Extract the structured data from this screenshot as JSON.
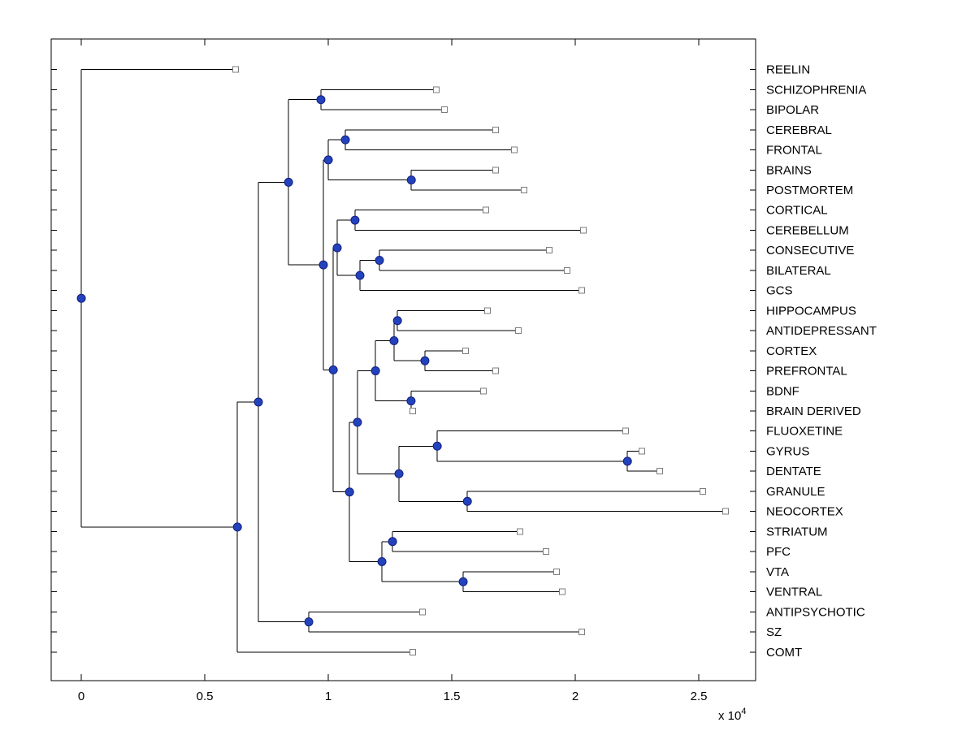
{
  "chart_data": {
    "type": "dendrogram",
    "title": "",
    "orientation": "root-left-leaves-right",
    "x_axis": {
      "tick_values": [
        0,
        0.5,
        1,
        1.5,
        2,
        2.5
      ],
      "tick_labels": [
        "0",
        "0.5",
        "1",
        "1.5",
        "2",
        "2.5"
      ],
      "range": [
        -0.122,
        2.73
      ],
      "multiplier_label": "x 10",
      "multiplier_exponent": "4",
      "units_multiplier": 10000
    },
    "y_axis": {
      "tick_count": 30,
      "ticks_per_leaf": true
    },
    "styles": {
      "background": "#ffffff",
      "branch_color": "#000000",
      "axis_color": "#000000",
      "label_color": "#000000",
      "node_marker": {
        "shape": "circle",
        "fill": "#2343bd",
        "edge": "#141f7d"
      },
      "leaf_marker": {
        "shape": "square",
        "fill": "#ffffff",
        "edge": "#7d7d7d"
      }
    },
    "tree": {
      "x": 0.0,
      "children": [
        {
          "label": "REELIN",
          "x": 0.625
        },
        {
          "x": 0.632,
          "children": [
            {
              "x": 0.717,
              "children": [
                {
                  "x": 0.839,
                  "children": [
                    {
                      "x": 0.97,
                      "children": [
                        {
                          "label": "SCHIZOPHRENIA",
                          "x": 1.438
                        },
                        {
                          "label": "BIPOLAR",
                          "x": 1.47
                        }
                      ]
                    },
                    {
                      "x": 0.98,
                      "children": [
                        {
                          "x": 1.0,
                          "children": [
                            {
                              "x": 1.069,
                              "children": [
                                {
                                  "label": "CEREBRAL",
                                  "x": 1.678
                                },
                                {
                                  "label": "FRONTAL",
                                  "x": 1.753
                                }
                              ]
                            },
                            {
                              "x": 1.336,
                              "children": [
                                {
                                  "label": "BRAINS",
                                  "x": 1.678
                                },
                                {
                                  "label": "POSTMORTEM",
                                  "x": 1.793
                                }
                              ]
                            }
                          ]
                        },
                        {
                          "x": 1.02,
                          "children": [
                            {
                              "x": 1.036,
                              "children": [
                                {
                                  "x": 1.108,
                                  "children": [
                                    {
                                      "label": "CORTICAL",
                                      "x": 1.638
                                    },
                                    {
                                      "label": "CEREBELLUM",
                                      "x": 2.033
                                    }
                                  ]
                                },
                                {
                                  "x": 1.128,
                                  "children": [
                                    {
                                      "x": 1.207,
                                      "children": [
                                        {
                                          "label": "CONSECUTIVE",
                                          "x": 1.895
                                        },
                                        {
                                          "label": "BILATERAL",
                                          "x": 1.967
                                        }
                                      ]
                                    },
                                    {
                                      "label": "GCS",
                                      "x": 2.026
                                    }
                                  ]
                                }
                              ]
                            },
                            {
                              "x": 1.086,
                              "children": [
                                {
                                  "x": 1.118,
                                  "children": [
                                    {
                                      "x": 1.191,
                                      "children": [
                                        {
                                          "x": 1.266,
                                          "children": [
                                            {
                                              "x": 1.28,
                                              "children": [
                                                {
                                                  "label": "HIPPOCAMPUS",
                                                  "x": 1.645
                                                },
                                                {
                                                  "label": "ANTIDEPRESSANT",
                                                  "x": 1.77
                                                }
                                              ]
                                            },
                                            {
                                              "x": 1.391,
                                              "children": [
                                                {
                                                  "label": "CORTEX",
                                                  "x": 1.556
                                                },
                                                {
                                                  "label": "PREFRONTAL",
                                                  "x": 1.678
                                                }
                                              ]
                                            }
                                          ]
                                        },
                                        {
                                          "x": 1.335,
                                          "children": [
                                            {
                                              "label": "BDNF",
                                              "x": 1.628
                                            },
                                            {
                                              "label": "BRAIN DERIVED",
                                              "x": 1.342
                                            }
                                          ]
                                        }
                                      ]
                                    },
                                    {
                                      "x": 1.286,
                                      "children": [
                                        {
                                          "x": 1.441,
                                          "children": [
                                            {
                                              "label": "FLUOXETINE",
                                              "x": 2.204
                                            },
                                            {
                                              "x": 2.211,
                                              "children": [
                                                {
                                                  "label": "GYRUS",
                                                  "x": 2.27
                                                },
                                                {
                                                  "label": "DENTATE",
                                                  "x": 2.342
                                                }
                                              ]
                                            }
                                          ]
                                        },
                                        {
                                          "x": 1.563,
                                          "children": [
                                            {
                                              "label": "GRANULE",
                                              "x": 2.516
                                            },
                                            {
                                              "label": "NEOCORTEX",
                                              "x": 2.609
                                            }
                                          ]
                                        }
                                      ]
                                    }
                                  ]
                                },
                                {
                                  "x": 1.217,
                                  "children": [
                                    {
                                      "x": 1.26,
                                      "children": [
                                        {
                                          "label": "STRIATUM",
                                          "x": 1.776
                                        },
                                        {
                                          "label": "PFC",
                                          "x": 1.882
                                        }
                                      ]
                                    },
                                    {
                                      "x": 1.546,
                                      "children": [
                                        {
                                          "label": "VTA",
                                          "x": 1.924
                                        },
                                        {
                                          "label": "VENTRAL",
                                          "x": 1.947
                                        }
                                      ]
                                    }
                                  ]
                                }
                              ]
                            }
                          ]
                        }
                      ]
                    }
                  ]
                },
                {
                  "x": 0.921,
                  "children": [
                    {
                      "label": "ANTIPSYCHOTIC",
                      "x": 1.382
                    },
                    {
                      "label": "SZ",
                      "x": 2.026
                    }
                  ]
                }
              ]
            },
            {
              "label": "COMT",
              "x": 1.342
            }
          ]
        }
      ]
    }
  }
}
